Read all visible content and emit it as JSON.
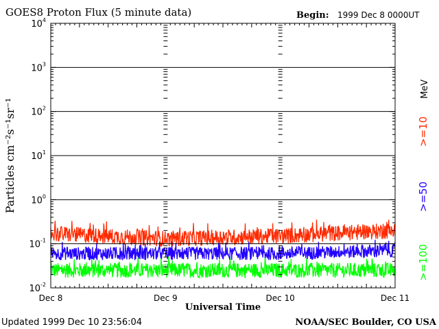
{
  "chart_data": {
    "type": "line",
    "title": "GOES8 Proton Flux (5 minute data)",
    "begin_label": "Begin:",
    "begin_value": "1999 Dec 8 0000UT",
    "xlabel": "Universal Time",
    "ylabel": "Particles cm⁻²s⁻¹sr⁻¹",
    "x_ticks": [
      "Dec 8",
      "Dec 9",
      "Dec 10",
      "Dec 11"
    ],
    "xlim_days": [
      0,
      3
    ],
    "y_scale": "log",
    "ylim": [
      0.01,
      10000
    ],
    "y_ticks": [
      {
        "base": "10",
        "exp": "-2"
      },
      {
        "base": "10",
        "exp": "-1"
      },
      {
        "base": "10",
        "exp": "0"
      },
      {
        "base": "10",
        "exp": "1"
      },
      {
        "base": "10",
        "exp": "2"
      },
      {
        "base": "10",
        "exp": "3"
      },
      {
        "base": "10",
        "exp": "4"
      }
    ],
    "grid": true,
    "unit_label": "MeV",
    "series": [
      {
        "name": ">=10",
        "color": "#ff2a00",
        "baseline": [
          0.17,
          0.13,
          0.15,
          0.2
        ],
        "spread_decades": 0.18
      },
      {
        "name": ">=50",
        "color": "#2200ff",
        "baseline": [
          0.06,
          0.06,
          0.06,
          0.07
        ],
        "spread_decades": 0.15
      },
      {
        "name": ">=100",
        "color": "#00ff00",
        "baseline": [
          0.025,
          0.025,
          0.025,
          0.025
        ],
        "spread_decades": 0.17
      }
    ],
    "legend_placement": "right"
  },
  "footer": {
    "updated": "Updated 1999 Dec 10 23:56:04",
    "credit": "NOAA/SEC Boulder, CO USA"
  }
}
